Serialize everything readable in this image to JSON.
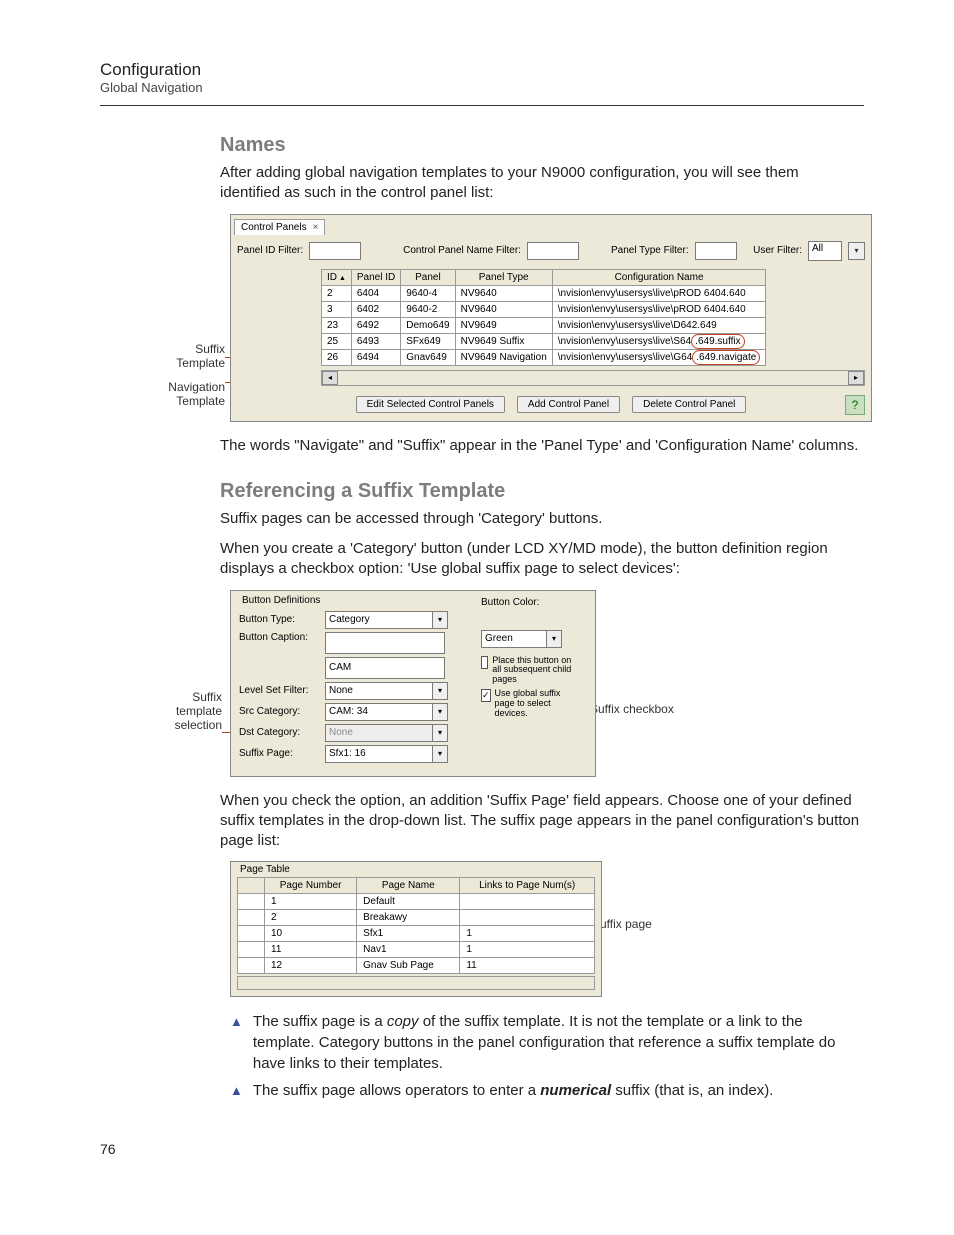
{
  "header": {
    "title": "Configuration",
    "sub": "Global Navigation"
  },
  "pageNumber": "76",
  "names": {
    "title": "Names",
    "intro": "After adding global navigation templates to your N9000 configuration, you will see them identified as such in the control panel list:",
    "after": "The words \"Navigate\" and \"Suffix\" appear in the 'Panel Type' and 'Configuration Name' columns."
  },
  "referencing": {
    "title": "Referencing a Suffix Template",
    "p1": "Suffix pages can be accessed through 'Category' buttons.",
    "p2": "When you create a 'Category' button (under LCD XY/MD mode), the button definition region displays a checkbox option: 'Use global suffix page to select devices':",
    "p3": "When you check the option, an addition 'Suffix Page' field appears. Choose one of your defined suffix templates in the drop-down list. The suffix page appears in the panel configuration's button page list:"
  },
  "bullets": {
    "b1a": "The suffix page is a ",
    "b1b": "copy",
    "b1c": " of the suffix template. It is not the template or a link to the template. Category buttons in the panel configuration that reference a suffix template do have links to their templates.",
    "b2a": "The suffix page allows operators to enter a ",
    "b2b": "numerical",
    "b2c": " suffix (that is, an index)."
  },
  "annot": {
    "suffixTemplate1": "Suffix",
    "suffixTemplate2": "Template",
    "navTemplate1": "Navigation",
    "navTemplate2": "Template",
    "suffixSel1": "Suffix",
    "suffixSel2": "template",
    "suffixSel3": "selection",
    "suffixCheckbox": "Suffix checkbox",
    "suffixPage": "Suffix page"
  },
  "shot1": {
    "tab": "Control Panels",
    "filters": {
      "panelId": "Panel ID Filter:",
      "panelName": "Control Panel Name Filter:",
      "panelType": "Panel Type Filter:",
      "userFilter": "User Filter:",
      "userFilterVal": "All"
    },
    "headers": [
      "ID",
      "Panel ID",
      "Panel",
      "Panel Type",
      "Configuration Name"
    ],
    "rows": [
      {
        "id": "2",
        "pid": "6404",
        "panel": "9640-4",
        "type": "NV9640",
        "cfg": "\\nvision\\envy\\usersys\\live\\pROD 6404.640",
        "hl": ""
      },
      {
        "id": "3",
        "pid": "6402",
        "panel": "9640-2",
        "type": "NV9640",
        "cfg": "\\nvision\\envy\\usersys\\live\\pROD 6404.640",
        "hl": ""
      },
      {
        "id": "23",
        "pid": "6492",
        "panel": "Demo649",
        "type": "NV9649",
        "cfg": "\\nvision\\envy\\usersys\\live\\D642.649",
        "hl": ""
      },
      {
        "id": "25",
        "pid": "6493",
        "panel": "SFx649",
        "type": "NV9649 Suffix",
        "cfg": "\\nvision\\envy\\usersys\\live\\S64",
        "hl": ".649.suffix"
      },
      {
        "id": "26",
        "pid": "6494",
        "panel": "Gnav649",
        "type": "NV9649 Navigation",
        "cfg": "\\nvision\\envy\\usersys\\live\\G64",
        "hl": ".649.navigate"
      }
    ],
    "btns": {
      "edit": "Edit Selected Control Panels",
      "add": "Add Control Panel",
      "del": "Delete Control Panel"
    }
  },
  "shot2": {
    "group": "Button Definitions",
    "btnType": "Button Type:",
    "btnTypeVal": "Category",
    "btnCaption": "Button Caption:",
    "btnCaptionVal": "CAM",
    "btnColor": "Button Color:",
    "btnColorVal": "Green",
    "levelSet": "Level Set Filter:",
    "levelSetVal": "None",
    "srcCat": "Src Category:",
    "srcCatVal": "CAM: 34",
    "dstCat": "Dst Category:",
    "dstCatVal": "None",
    "suffixPage": "Suffix Page:",
    "suffixPageVal": "Sfx1: 16",
    "chk1": "Place this button on all subsequent child pages",
    "chk2": "Use global suffix page to select devices."
  },
  "shot3": {
    "group": "Page Table",
    "headers": [
      "Page Number",
      "Page Name",
      "Links to Page Num(s)"
    ],
    "rows": [
      [
        "1",
        "Default",
        ""
      ],
      [
        "2",
        "Breakawy",
        ""
      ],
      [
        "10",
        "Sfx1",
        "1"
      ],
      [
        "11",
        "Nav1",
        "1"
      ],
      [
        "12",
        "Gnav Sub Page",
        "11"
      ]
    ]
  }
}
